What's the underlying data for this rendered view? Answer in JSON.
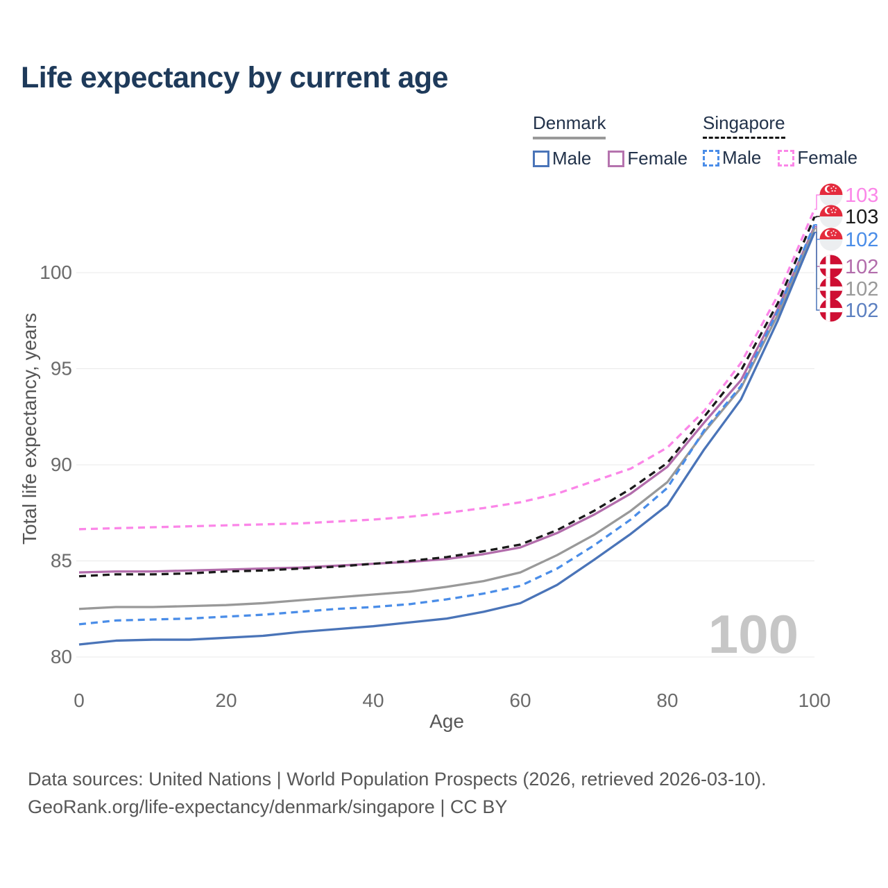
{
  "title": "Life expectancy by current age",
  "legend": {
    "groups": [
      {
        "country": "Denmark",
        "line_style": "solid",
        "underline_color": "#999999",
        "items": [
          {
            "label": "Male",
            "color": "#4a74b8",
            "dashed": false
          },
          {
            "label": "Female",
            "color": "#b573ae",
            "dashed": false
          }
        ]
      },
      {
        "country": "Singapore",
        "line_style": "dashed",
        "underline_color": "#111111",
        "items": [
          {
            "label": "Male",
            "color": "#4a8de8",
            "dashed": true
          },
          {
            "label": "Female",
            "color": "#fb86e8",
            "dashed": true
          }
        ]
      }
    ]
  },
  "chart_data": {
    "type": "line",
    "title": "Life expectancy by current age",
    "xlabel": "Age",
    "ylabel": "Total life expectancy, years",
    "x": [
      0,
      5,
      10,
      15,
      20,
      25,
      30,
      35,
      40,
      45,
      50,
      55,
      60,
      65,
      70,
      75,
      80,
      85,
      90,
      95,
      100
    ],
    "xticks": [
      0,
      20,
      40,
      60,
      80,
      100
    ],
    "yticks": [
      80,
      85,
      90,
      95,
      100
    ],
    "xlim": [
      0,
      100
    ],
    "ylim": [
      79.6,
      104
    ],
    "grid": true,
    "legend_position": "top-right",
    "watermark": "100",
    "series": [
      {
        "id": "singapore-female",
        "name": "Singapore Female",
        "color": "#fb86e8",
        "dash": true,
        "flag": "singapore",
        "end_label": "103",
        "label_color": "#fb86e8",
        "values": [
          86.65,
          86.7,
          86.75,
          86.8,
          86.85,
          86.9,
          86.95,
          87.05,
          87.15,
          87.3,
          87.5,
          87.75,
          88.05,
          88.5,
          89.15,
          89.8,
          90.9,
          92.8,
          95.3,
          98.8,
          103.3
        ]
      },
      {
        "id": "singapore-both",
        "name": "Singapore Both sexes",
        "color": "#1a1a1a",
        "dash": true,
        "flag": "singapore",
        "end_label": "103",
        "label_color": "#1a1a1a",
        "values": [
          84.2,
          84.3,
          84.3,
          84.35,
          84.45,
          84.5,
          84.6,
          84.7,
          84.85,
          85.0,
          85.2,
          85.5,
          85.85,
          86.6,
          87.6,
          88.75,
          90.1,
          92.5,
          94.9,
          98.4,
          102.9
        ]
      },
      {
        "id": "singapore-male",
        "name": "Singapore Male",
        "color": "#4a8de8",
        "dash": true,
        "flag": "singapore",
        "end_label": "102",
        "label_color": "#4a8de8",
        "values": [
          81.7,
          81.9,
          81.95,
          82.0,
          82.1,
          82.2,
          82.35,
          82.5,
          82.6,
          82.75,
          83.0,
          83.3,
          83.7,
          84.6,
          85.8,
          87.15,
          88.8,
          91.8,
          94.1,
          98.0,
          102.5
        ]
      },
      {
        "id": "denmark-female",
        "name": "Denmark Female",
        "color": "#b26cab",
        "dash": false,
        "flag": "denmark",
        "end_label": "102",
        "label_color": "#b26cab",
        "values": [
          84.4,
          84.45,
          84.45,
          84.5,
          84.55,
          84.6,
          84.65,
          84.75,
          84.85,
          84.95,
          85.1,
          85.35,
          85.7,
          86.45,
          87.4,
          88.5,
          89.9,
          92.2,
          94.4,
          98.1,
          102.4
        ]
      },
      {
        "id": "denmark-both",
        "name": "Denmark Both sexes",
        "color": "#999999",
        "dash": false,
        "flag": "denmark",
        "end_label": "102",
        "label_color": "#999999",
        "values": [
          82.5,
          82.6,
          82.6,
          82.65,
          82.7,
          82.8,
          82.95,
          83.1,
          83.25,
          83.4,
          83.65,
          83.95,
          84.4,
          85.3,
          86.35,
          87.6,
          89.1,
          91.7,
          94.0,
          97.8,
          102.3
        ]
      },
      {
        "id": "denmark-male",
        "name": "Denmark Male",
        "color": "#4a74b8",
        "dash": false,
        "flag": "denmark",
        "end_label": "102",
        "label_color": "#5b7fc0",
        "values": [
          80.65,
          80.85,
          80.9,
          80.9,
          81.0,
          81.1,
          81.3,
          81.45,
          81.6,
          81.8,
          82.0,
          82.35,
          82.8,
          83.75,
          85.05,
          86.4,
          87.9,
          90.8,
          93.4,
          97.5,
          102.1
        ]
      }
    ]
  },
  "footer": {
    "line1": "Data sources: United Nations | World Population Prospects (2026, retrieved 2026-03-10).",
    "line2": "GeoRank.org/life-expectancy/denmark/singapore | CC BY"
  }
}
